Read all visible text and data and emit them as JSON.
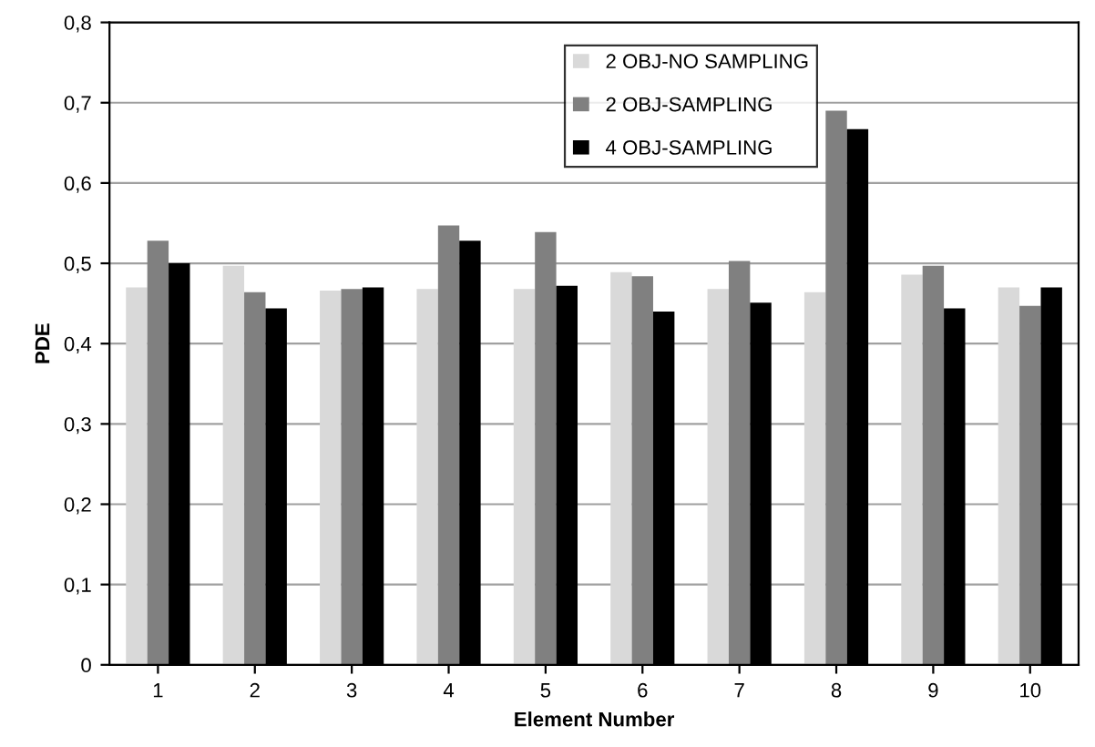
{
  "chart_data": {
    "type": "bar",
    "xlabel": "Element Number",
    "ylabel": "PDE",
    "categories": [
      "1",
      "2",
      "3",
      "4",
      "5",
      "6",
      "7",
      "8",
      "9",
      "10"
    ],
    "series": [
      {
        "name": "2 OBJ-NO SAMPLING",
        "color": "#d9d9d9",
        "values": [
          0.47,
          0.497,
          0.466,
          0.468,
          0.468,
          0.489,
          0.468,
          0.464,
          0.486,
          0.47
        ]
      },
      {
        "name": "2 OBJ-SAMPLING",
        "color": "#808080",
        "values": [
          0.528,
          0.464,
          0.468,
          0.547,
          0.539,
          0.484,
          0.503,
          0.69,
          0.497,
          0.447
        ]
      },
      {
        "name": "4 OBJ-SAMPLING",
        "color": "#000000",
        "values": [
          0.5,
          0.444,
          0.47,
          0.528,
          0.472,
          0.44,
          0.451,
          0.667,
          0.444,
          0.47
        ]
      }
    ],
    "ylim": [
      0,
      0.8
    ],
    "yticks": [
      0,
      {
        "value": 0.1,
        "label": "0,1"
      },
      {
        "value": 0.2,
        "label": "0,2"
      },
      {
        "value": 0.3,
        "label": "0,3"
      },
      {
        "value": 0.4,
        "label": "0,4"
      },
      {
        "value": 0.5,
        "label": "0,5"
      },
      {
        "value": 0.6,
        "label": "0,6"
      },
      {
        "value": 0.7,
        "label": "0,7"
      },
      {
        "value": 0.8,
        "label": "0,8"
      }
    ],
    "grid": "y",
    "legend": "top"
  }
}
